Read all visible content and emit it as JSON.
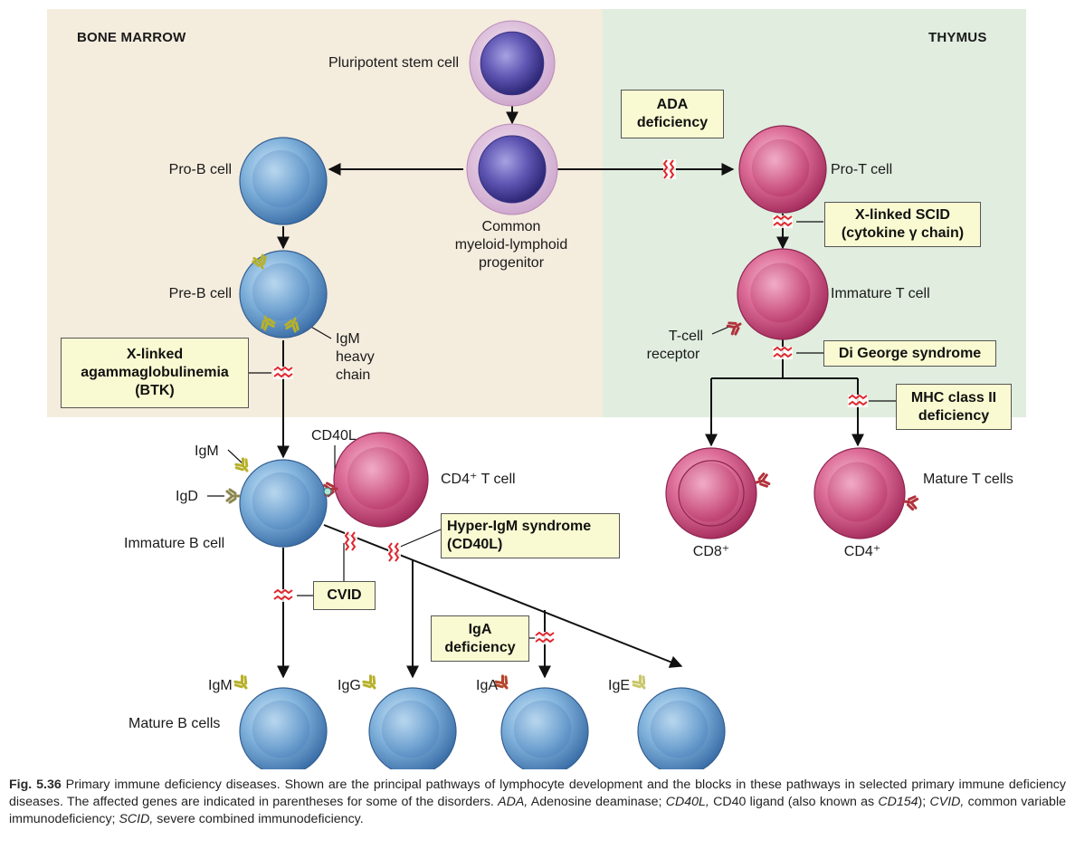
{
  "regions": {
    "bone_marrow": "BONE MARROW",
    "thymus": "THYMUS"
  },
  "colors": {
    "bone_marrow_bg": "#f4ecdd",
    "thymus_bg": "#e0eddf",
    "block_box": "#fafad2",
    "block_mark": "#e0242b"
  },
  "cells": {
    "pluripotent": "Pluripotent stem cell",
    "common_progenitor": [
      "Common",
      "myeloid-lymphoid",
      "progenitor"
    ],
    "pro_b": "Pro-B cell",
    "pre_b": "Pre-B cell",
    "igm_heavy_chain": [
      "IgM",
      "heavy",
      "chain"
    ],
    "pro_t": "Pro-T cell",
    "immature_t": "Immature T cell",
    "t_cell_receptor": [
      "T-cell",
      "receptor"
    ],
    "cd40l": "CD40L",
    "cd4_t_cell": "CD4⁺ T cell",
    "immature_b": "Immature B cell",
    "igm": "IgM",
    "igd": "IgD",
    "mature_t_cells": "Mature T cells",
    "cd8": "CD8⁺",
    "cd4": "CD4⁺",
    "mature_b_cells": "Mature B cells",
    "mature_igm": "IgM",
    "igg": "IgG",
    "iga": "IgA",
    "ige": "IgE"
  },
  "blocks": {
    "ada": [
      "ADA",
      "deficiency"
    ],
    "x_scid": [
      "X-linked SCID",
      "(cytokine γ chain)"
    ],
    "xla": [
      "X-linked",
      "agammaglobulinemia",
      "(BTK)"
    ],
    "digeorge": [
      "Di George syndrome"
    ],
    "mhc2": [
      "MHC class II",
      "deficiency"
    ],
    "hyper_igm": [
      "Hyper-IgM syndrome",
      "(CD40L)"
    ],
    "cvid": [
      "CVID"
    ],
    "iga_def": [
      "IgA",
      "deficiency"
    ]
  },
  "caption": {
    "fig": "Fig. 5.36",
    "t1": " Primary immune deficiency diseases. Shown are the principal pathways of lymphocyte development and the blocks in these pathways in selected primary immune deficiency diseases. The affected genes are indicated in parentheses for some of the disorders. ",
    "ada": "ADA,",
    "t2": " Adenosine deaminase; ",
    "cd40l": "CD40L,",
    "t3": " CD40 ligand (also known as ",
    "cd154": "CD154",
    "t4": "); ",
    "cvid": "CVID,",
    "t5": " common variable immunodeficiency; ",
    "scid": "SCID,",
    "t6": " severe combined immunodeficiency."
  }
}
